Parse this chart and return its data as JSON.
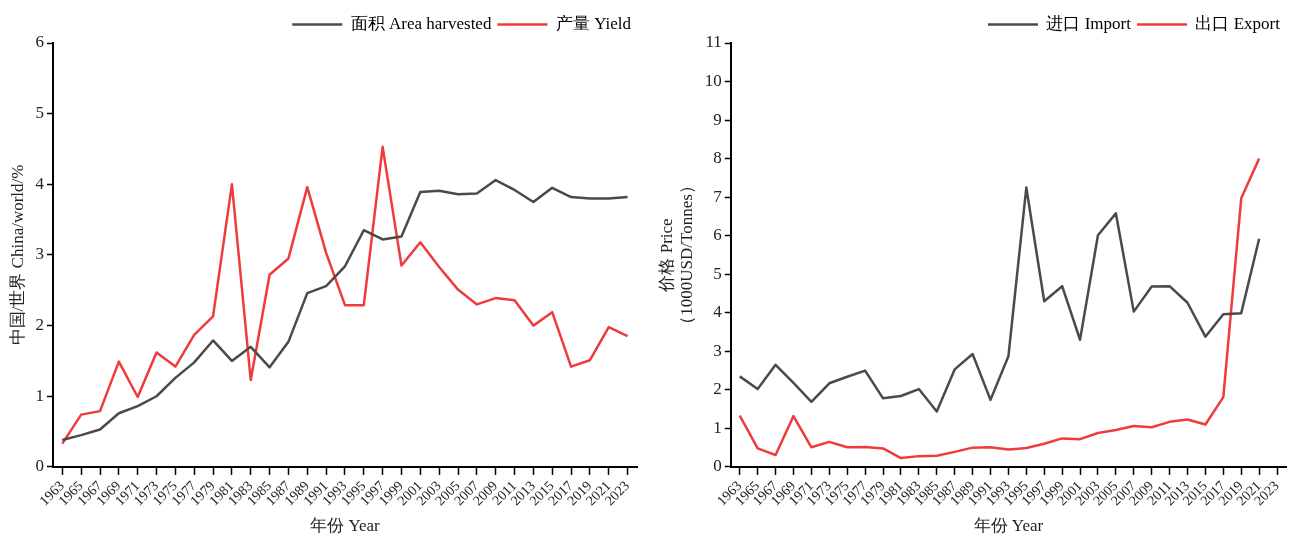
{
  "chart_data": [
    {
      "type": "line",
      "xlabel": "年份 Year",
      "ylabel": "中国/世界 China/world/%",
      "categories": [
        "1963",
        "1965",
        "1967",
        "1969",
        "1971",
        "1973",
        "1975",
        "1977",
        "1979",
        "1981",
        "1983",
        "1985",
        "1987",
        "1989",
        "1991",
        "1993",
        "1995",
        "1997",
        "1999",
        "2001",
        "2003",
        "2005",
        "2007",
        "2009",
        "2011",
        "2013",
        "2015",
        "2017",
        "2019",
        "2021",
        "2023"
      ],
      "series": [
        {
          "name": "面积 Area harvested",
          "color": "#4a4a4a",
          "values": [
            0.38,
            0.45,
            0.53,
            0.76,
            0.86,
            1.0,
            1.26,
            1.48,
            1.79,
            1.5,
            1.7,
            1.41,
            1.77,
            2.46,
            2.56,
            2.84,
            3.35,
            3.22,
            3.26,
            3.89,
            3.91,
            3.86,
            3.87,
            4.06,
            3.92,
            3.75,
            3.95,
            3.82,
            3.8,
            3.8,
            3.82
          ]
        },
        {
          "name": "产量 Yield",
          "color": "#ef3b3b",
          "values": [
            0.33,
            0.74,
            0.79,
            1.49,
            0.99,
            1.62,
            1.42,
            1.87,
            2.13,
            4.0,
            1.23,
            2.72,
            2.95,
            3.96,
            3.03,
            2.29,
            2.29,
            4.53,
            2.85,
            3.18,
            2.83,
            2.51,
            2.3,
            2.39,
            2.36,
            2.0,
            2.19,
            1.42,
            1.51,
            1.98,
            1.85
          ]
        }
      ],
      "ylim": [
        0,
        6
      ],
      "yticks": [
        0,
        1,
        2,
        3,
        4,
        5,
        6
      ],
      "grid": false,
      "legend": "top right",
      "marker": "none"
    },
    {
      "type": "line",
      "xlabel": "年份 Year",
      "ylabel": "价格 Price\n（1000USD/Tonnes）",
      "categories": [
        "1963",
        "1965",
        "1967",
        "1969",
        "1971",
        "1973",
        "1975",
        "1977",
        "1979",
        "1981",
        "1983",
        "1985",
        "1987",
        "1989",
        "1991",
        "1993",
        "1995",
        "1997",
        "1999",
        "2001",
        "2003",
        "2005",
        "2007",
        "2009",
        "2011",
        "2013",
        "2015",
        "2017",
        "2019",
        "2021",
        "2023"
      ],
      "series": [
        {
          "name": "进口 Import",
          "color": "#4a4a4a",
          "values": [
            2.35,
            2.02,
            2.65,
            2.18,
            1.69,
            2.17,
            2.34,
            2.5,
            1.78,
            1.84,
            2.02,
            1.44,
            2.53,
            2.93,
            1.74,
            2.87,
            7.25,
            4.3,
            4.69,
            3.3,
            6.01,
            6.58,
            4.03,
            4.68,
            4.69,
            4.26,
            3.38,
            3.96,
            3.99,
            5.92,
            null
          ]
        },
        {
          "name": "出口 Export",
          "color": "#ef3b3b",
          "values": [
            1.33,
            0.48,
            0.31,
            1.32,
            0.51,
            0.65,
            0.51,
            0.52,
            0.48,
            0.23,
            0.28,
            0.29,
            0.39,
            0.5,
            0.51,
            0.45,
            0.49,
            0.6,
            0.74,
            0.72,
            0.88,
            0.96,
            1.06,
            1.03,
            1.17,
            1.23,
            1.1,
            1.81,
            6.97,
            8.0,
            null
          ]
        }
      ],
      "ylim": [
        0,
        11
      ],
      "yticks": [
        0,
        1,
        2,
        3,
        4,
        5,
        6,
        7,
        8,
        9,
        10,
        11
      ],
      "grid": false,
      "legend": "top right",
      "marker": "none"
    }
  ]
}
